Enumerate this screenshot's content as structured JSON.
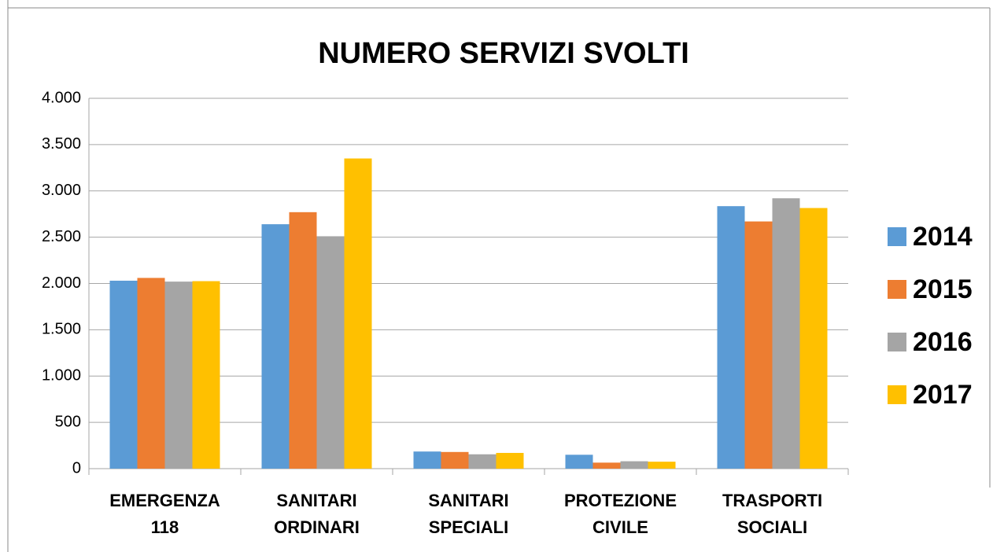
{
  "chart_data": {
    "type": "bar",
    "title": "NUMERO SERVIZI SVOLTI",
    "categories": [
      "EMERGENZA 118",
      "SANITARI ORDINARI",
      "SANITARI SPECIALI",
      "PROTEZIONE CIVILE",
      "TRASPORTI SOCIALI"
    ],
    "series": [
      {
        "name": "2014",
        "color": "#5b9bd5",
        "values": [
          2030,
          2640,
          185,
          150,
          2835
        ]
      },
      {
        "name": "2015",
        "color": "#ed7d31",
        "values": [
          2060,
          2770,
          180,
          65,
          2670
        ]
      },
      {
        "name": "2016",
        "color": "#a5a5a5",
        "values": [
          2020,
          2510,
          155,
          80,
          2920
        ]
      },
      {
        "name": "2017",
        "color": "#ffc000",
        "values": [
          2025,
          3350,
          170,
          75,
          2815
        ]
      }
    ],
    "ylim": [
      0,
      4000
    ],
    "yticks": [
      0,
      500,
      {
        "value": 1000,
        "label": "1.000"
      },
      {
        "value": 1500,
        "label": "1.500"
      },
      {
        "value": 2000,
        "label": "2.000"
      },
      {
        "value": 2500,
        "label": "2.500"
      },
      {
        "value": 3000,
        "label": "3.000"
      },
      {
        "value": 3500,
        "label": "3.500"
      },
      {
        "value": 4000,
        "label": "4.000"
      }
    ],
    "grid": true,
    "legend": "right"
  }
}
